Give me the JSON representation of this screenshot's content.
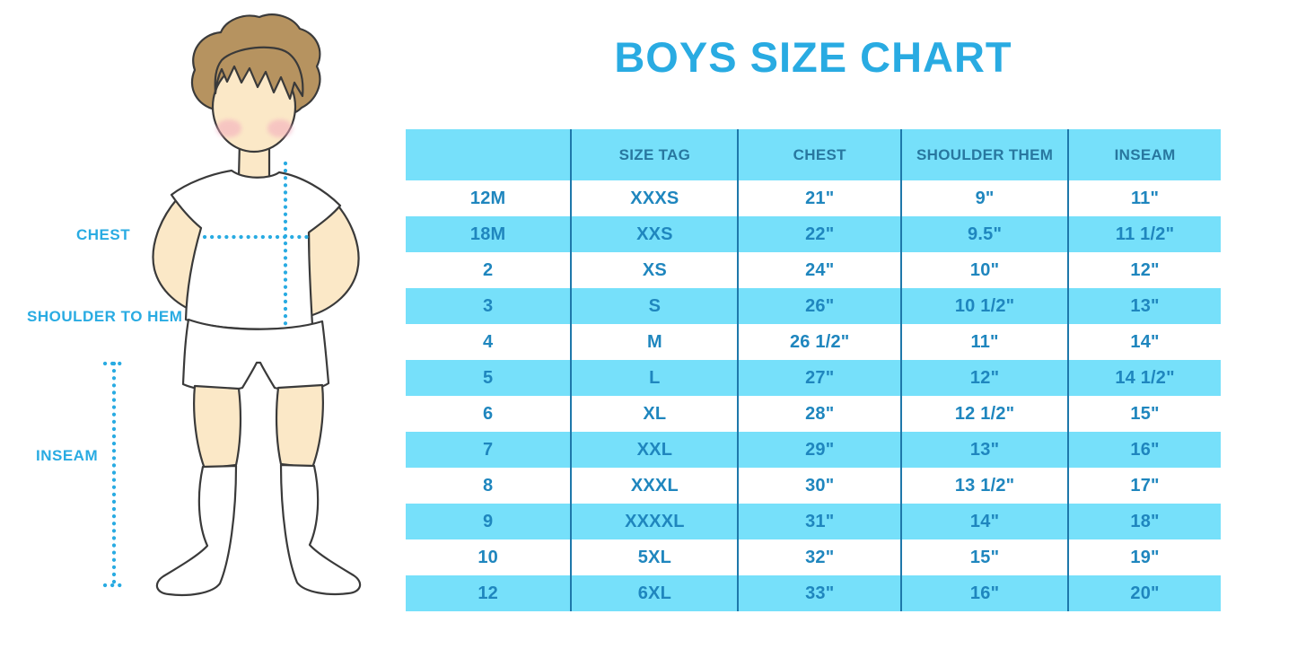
{
  "title": {
    "text": "BOYS SIZE CHART"
  },
  "measurement_labels": {
    "chest": "CHEST",
    "shoulder_to_hem": "SHOULDER TO HEM",
    "inseam": "INSEAM"
  },
  "table": {
    "headers": [
      "",
      "SIZE TAG",
      "CHEST",
      "SHOULDER THEM",
      "INSEAM"
    ],
    "rows": [
      [
        "12M",
        "XXXS",
        "21\"",
        "9\"",
        "11\""
      ],
      [
        "18M",
        "XXS",
        "22\"",
        "9.5\"",
        "11 1/2\""
      ],
      [
        "2",
        "XS",
        "24\"",
        "10\"",
        "12\""
      ],
      [
        "3",
        "S",
        "26\"",
        "10 1/2\"",
        "13\""
      ],
      [
        "4",
        "M",
        "26 1/2\"",
        "11\"",
        "14\""
      ],
      [
        "5",
        "L",
        "27\"",
        "12\"",
        "14 1/2\""
      ],
      [
        "6",
        "XL",
        "28\"",
        "12 1/2\"",
        "15\""
      ],
      [
        "7",
        "XXL",
        "29\"",
        "13\"",
        "16\""
      ],
      [
        "8",
        "XXXL",
        "30\"",
        "13 1/2\"",
        "17\""
      ],
      [
        "9",
        "XXXXL",
        "31\"",
        "14\"",
        "18\""
      ],
      [
        "10",
        "5XL",
        "32\"",
        "15\"",
        "19\""
      ],
      [
        "12",
        "6XL",
        "33\"",
        "16\"",
        "20\""
      ]
    ]
  },
  "colors": {
    "accent_blue": "#29ABE2",
    "band_blue": "#76E0FA",
    "separator_blue": "#1E78AA",
    "cell_text": "#1F86BE",
    "header_text": "#28779F"
  }
}
